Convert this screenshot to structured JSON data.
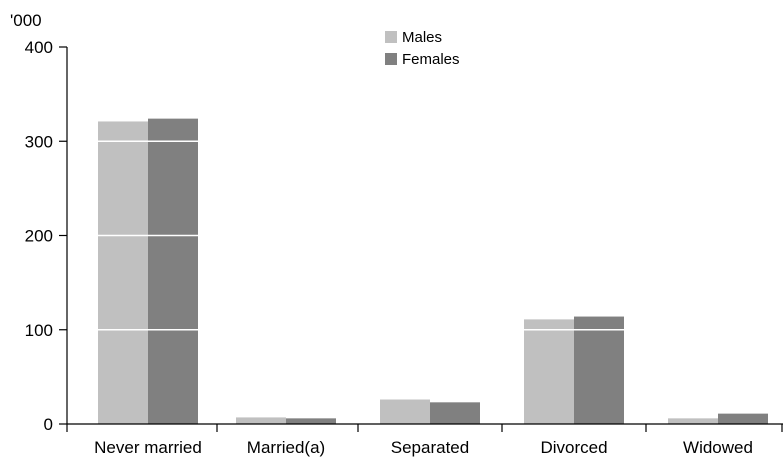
{
  "chart_data": {
    "type": "bar",
    "title": "",
    "unit_label": "'000",
    "xlabel": "",
    "ylabel": "",
    "categories": [
      "Never married",
      "Married(a)",
      "Separated",
      "Divorced",
      "Widowed"
    ],
    "series": [
      {
        "name": "Males",
        "values": [
          321,
          7,
          26,
          111,
          6
        ],
        "color": "#c0c0c0"
      },
      {
        "name": "Females",
        "values": [
          324,
          6,
          23,
          114,
          11
        ],
        "color": "#808080"
      }
    ],
    "ylim": [
      0,
      400
    ],
    "yticks": [
      0,
      100,
      200,
      300,
      400
    ],
    "grid": "white lines drawn over bars",
    "legend_position": "top-center"
  }
}
